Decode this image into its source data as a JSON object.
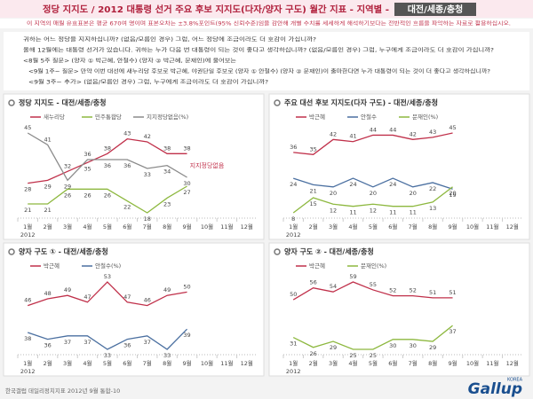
{
  "header": {
    "title": "정당 지지도 / 2012 대통령 선거 주요 후보 지지도(다자/양자 구도) 월간 지표 - 지역별 -",
    "region": "대전/세종/충청",
    "note": "이 지역의 매월 유효표본은 평균 670여 명이며 표본오차는 ±3.8%포인트(95% 신뢰수준)임을 감안해 개별 수치를 세세하게 해석하기보다는 전반적인 흐름을 파악하는 자료로 활용하십시오."
  },
  "questions": [
    "귀하는 어느 정당을 지지하십니까? (없음/모름인 경우) 그럼, 어느 정당에 조금이라도 더 호감이 가십니까?",
    "올해 12월에는 대통령 선거가 있습니다. 귀하는 누가 다음 번 대통령이 되는 것이 좋다고 생각하십니까? (없음/모름인 경우) 그럼, 누구에게 조금이라도 더 호감이 가십니까?",
    "<8월 5주 질문> (양자 ① 박근혜, 안철수) (양자 ② 박근혜, 문재인)에 물어보는",
    "<9월 1주~ 질문> 만약 이번 대선에 새누리당 후보로 박근혜, 야권단일 후보로 (양자 ① 안철수) (양자 ② 문재인)이 출마한다면 누가 대통령이 되는 것이 더 좋다고 생각하십니까?",
    "<9월 3주~ 추가> (없음/모름인 경우) 그럼, 누구에게 조금이라도 더 호감이 가십니까?"
  ],
  "chart_data": [
    {
      "type": "line",
      "title": "정당 지지도 - 대전/세종/충청",
      "annotation": "지지정당없음",
      "categories": [
        "1월",
        "2월",
        "3월",
        "4월",
        "5월",
        "6월",
        "7월",
        "8월",
        "9월",
        "10월",
        "11월",
        "12월"
      ],
      "year_label": "2012",
      "series": [
        {
          "name": "새누리당",
          "color": "#c0304a",
          "values": [
            28,
            29,
            32,
            35,
            38,
            43,
            42,
            38,
            38,
            null,
            null,
            null
          ]
        },
        {
          "name": "민주통합당",
          "color": "#8db83f",
          "values": [
            21,
            21,
            26,
            26,
            26,
            22,
            18,
            23,
            27,
            null,
            null,
            null
          ]
        },
        {
          "name": "지지정당없음(%)",
          "color": "#8a8a8a",
          "values": [
            45,
            41,
            29,
            36,
            36,
            36,
            33,
            34,
            30,
            null,
            null,
            null
          ]
        }
      ]
    },
    {
      "type": "line",
      "title": "주요 대선 후보 지지도(다자 구도) - 대전/세종/충청",
      "categories": [
        "1월",
        "2월",
        "3월",
        "4월",
        "5월",
        "6월",
        "7월",
        "8월",
        "9월",
        "10월",
        "11월",
        "12월"
      ],
      "year_label": "2012",
      "series": [
        {
          "name": "박근혜",
          "color": "#c0304a",
          "values": [
            36,
            35,
            42,
            41,
            44,
            44,
            42,
            43,
            45,
            null,
            null,
            null
          ]
        },
        {
          "name": "안철수",
          "color": "#4a6fa0",
          "values": [
            24,
            21,
            20,
            24,
            20,
            24,
            20,
            22,
            19,
            null,
            null,
            null
          ]
        },
        {
          "name": "문재인(%)",
          "color": "#8db83f",
          "values": [
            8,
            15,
            12,
            11,
            12,
            11,
            11,
            13,
            20,
            null,
            null,
            null
          ]
        }
      ]
    },
    {
      "type": "line",
      "title": "양자 구도 ① - 대전/세종/충청",
      "categories": [
        "1월",
        "2월",
        "3월",
        "4월",
        "5월",
        "6월",
        "7월",
        "8월",
        "9월",
        "10월",
        "11월",
        "12월"
      ],
      "year_label": "2012",
      "series": [
        {
          "name": "박근혜",
          "color": "#c0304a",
          "values": [
            46,
            48,
            49,
            47,
            53,
            47,
            46,
            49,
            50,
            null,
            null,
            null
          ]
        },
        {
          "name": "안철수(%)",
          "color": "#4a6fa0",
          "values": [
            38,
            36,
            37,
            37,
            33,
            36,
            37,
            33,
            39,
            null,
            null,
            null
          ]
        }
      ]
    },
    {
      "type": "line",
      "title": "양자 구도 ② - 대전/세종/충청",
      "categories": [
        "1월",
        "2월",
        "3월",
        "4월",
        "5월",
        "6월",
        "7월",
        "8월",
        "9월",
        "10월",
        "11월",
        "12월"
      ],
      "year_label": "2012",
      "series": [
        {
          "name": "박근혜",
          "color": "#c0304a",
          "values": [
            50,
            56,
            54,
            59,
            55,
            52,
            52,
            51,
            51,
            null,
            null,
            null
          ]
        },
        {
          "name": "문재인(%)",
          "color": "#8db83f",
          "values": [
            31,
            26,
            29,
            25,
            25,
            30,
            30,
            29,
            37,
            null,
            null,
            null
          ]
        }
      ]
    }
  ],
  "footer": {
    "source": "한국갤럽 데일리정치지표 2012년 9월 통합-10",
    "logo": "Gallup",
    "logo_sub": "KOREA"
  }
}
